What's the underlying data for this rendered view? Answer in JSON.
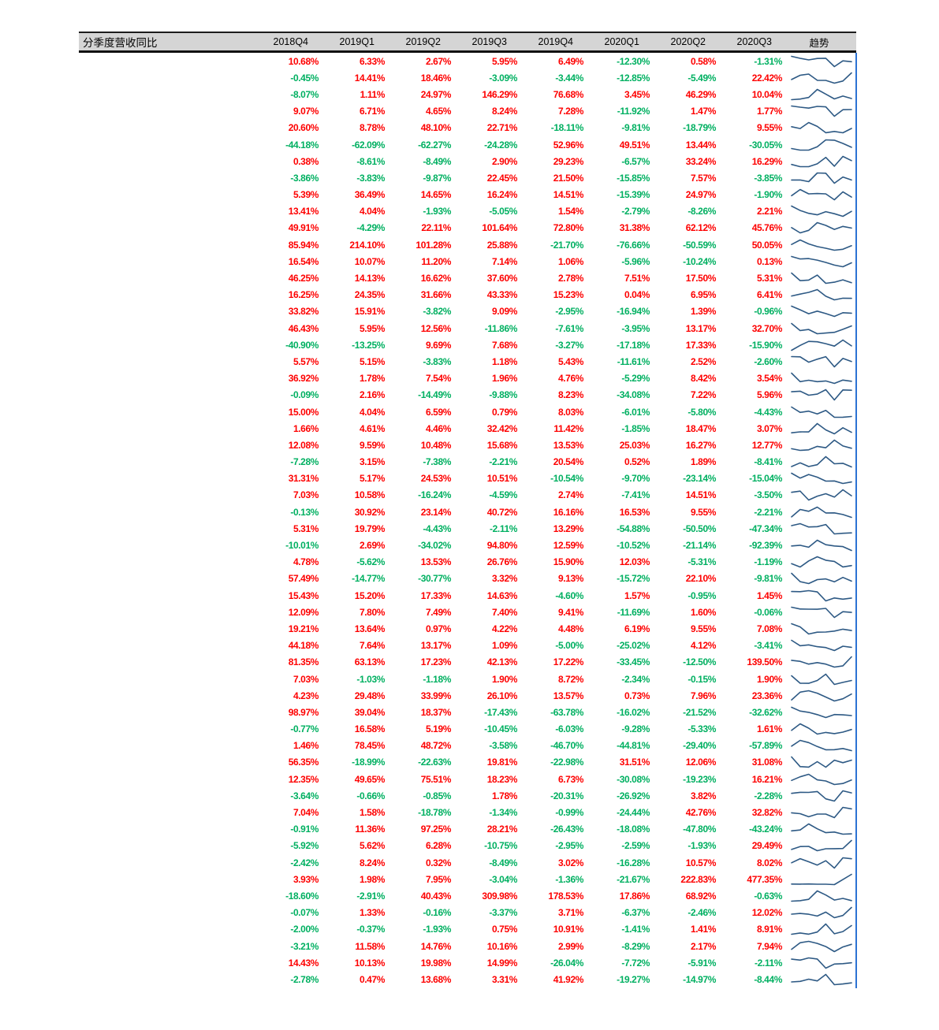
{
  "chart_data": {
    "type": "table",
    "title": "分季度营收同比",
    "columns": [
      "2018Q4",
      "2019Q1",
      "2019Q2",
      "2019Q3",
      "2019Q4",
      "2020Q1",
      "2020Q2",
      "2020Q3"
    ],
    "trend_label": "趋势",
    "value_unit": "%",
    "value_format": "two decimals with % suffix",
    "trend_description": "sparkline line chart of each row's 8 quarterly values",
    "rows": [
      [
        10.68,
        6.33,
        2.67,
        5.95,
        6.49,
        -12.3,
        0.58,
        -1.31
      ],
      [
        -0.45,
        14.41,
        18.46,
        -3.09,
        -3.44,
        -12.85,
        -5.49,
        22.42
      ],
      [
        -8.07,
        1.11,
        24.97,
        146.29,
        76.68,
        3.45,
        46.29,
        10.04
      ],
      [
        9.07,
        6.71,
        4.65,
        8.24,
        7.28,
        -11.92,
        1.47,
        1.77
      ],
      [
        20.6,
        8.78,
        48.1,
        22.71,
        -18.11,
        -9.81,
        -18.79,
        9.55
      ],
      [
        -44.18,
        -62.09,
        -62.27,
        -24.28,
        52.96,
        49.51,
        13.44,
        -30.05
      ],
      [
        0.38,
        -8.61,
        -8.49,
        2.9,
        29.23,
        -6.57,
        33.24,
        16.29
      ],
      [
        -3.86,
        -3.83,
        -9.87,
        22.45,
        21.5,
        -15.85,
        7.57,
        -3.85
      ],
      [
        5.39,
        36.49,
        14.65,
        16.24,
        14.51,
        -15.39,
        24.97,
        -1.9
      ],
      [
        13.41,
        4.04,
        -1.93,
        -5.05,
        1.54,
        -2.79,
        -8.26,
        2.21
      ],
      [
        49.91,
        -4.29,
        22.11,
        101.64,
        72.8,
        31.38,
        62.12,
        45.76
      ],
      [
        85.94,
        214.1,
        101.28,
        25.88,
        -21.7,
        -76.66,
        -50.59,
        50.05
      ],
      [
        16.54,
        10.07,
        11.2,
        7.14,
        1.06,
        -5.96,
        -10.24,
        0.13
      ],
      [
        46.25,
        14.13,
        16.62,
        37.6,
        2.78,
        7.51,
        17.5,
        5.31
      ],
      [
        16.25,
        24.35,
        31.66,
        43.33,
        15.23,
        0.04,
        6.95,
        6.41
      ],
      [
        33.82,
        15.91,
        -3.82,
        9.09,
        -2.95,
        -16.94,
        1.39,
        -0.96
      ],
      [
        46.43,
        5.95,
        12.56,
        -11.86,
        -7.61,
        -3.95,
        13.17,
        32.7
      ],
      [
        -40.9,
        -13.25,
        9.69,
        7.68,
        -3.27,
        -17.18,
        17.33,
        -15.9
      ],
      [
        5.57,
        5.15,
        -3.83,
        1.18,
        5.43,
        -11.61,
        2.52,
        -2.6
      ],
      [
        36.92,
        1.78,
        7.54,
        1.96,
        4.76,
        -5.29,
        8.42,
        3.54
      ],
      [
        -0.09,
        2.16,
        -14.49,
        -9.88,
        8.23,
        -34.08,
        7.22,
        5.96
      ],
      [
        15.0,
        4.04,
        6.59,
        0.79,
        8.03,
        -6.01,
        -5.8,
        -4.43
      ],
      [
        1.66,
        4.61,
        4.46,
        32.42,
        11.42,
        -1.85,
        18.47,
        3.07
      ],
      [
        12.08,
        9.59,
        10.48,
        15.68,
        13.53,
        25.03,
        16.27,
        12.77
      ],
      [
        -7.28,
        3.15,
        -7.38,
        -2.21,
        20.54,
        0.52,
        1.89,
        -8.41
      ],
      [
        31.31,
        5.17,
        24.53,
        10.51,
        -10.54,
        -9.7,
        -23.14,
        -15.04
      ],
      [
        7.03,
        10.58,
        -16.24,
        -4.59,
        2.74,
        -7.41,
        14.51,
        -3.5
      ],
      [
        -0.13,
        30.92,
        23.14,
        40.72,
        16.16,
        16.53,
        9.55,
        -2.21
      ],
      [
        5.31,
        19.79,
        -4.43,
        -2.11,
        13.29,
        -54.88,
        -50.5,
        -47.34
      ],
      [
        -10.01,
        2.69,
        -34.02,
        94.8,
        12.59,
        -10.52,
        -21.14,
        -92.39
      ],
      [
        4.78,
        -5.62,
        13.53,
        26.76,
        15.9,
        12.03,
        -5.31,
        -1.19
      ],
      [
        57.49,
        -14.77,
        -30.77,
        3.32,
        9.13,
        -15.72,
        22.1,
        -9.81
      ],
      [
        15.43,
        15.2,
        17.33,
        14.63,
        -4.6,
        1.57,
        -0.95,
        1.45
      ],
      [
        12.09,
        7.8,
        7.49,
        7.4,
        9.41,
        -11.69,
        1.6,
        -0.06
      ],
      [
        19.21,
        13.64,
        0.97,
        4.22,
        4.48,
        6.19,
        9.55,
        7.08
      ],
      [
        44.18,
        7.64,
        13.17,
        1.09,
        -5.0,
        -25.02,
        4.12,
        -3.41
      ],
      [
        81.35,
        63.13,
        17.23,
        42.13,
        17.22,
        -33.45,
        -12.5,
        139.5
      ],
      [
        7.03,
        -1.03,
        -1.18,
        1.9,
        8.72,
        -2.34,
        -0.15,
        1.9
      ],
      [
        4.23,
        29.48,
        33.99,
        26.1,
        13.57,
        0.73,
        7.96,
        23.36
      ],
      [
        98.97,
        39.04,
        18.37,
        -17.43,
        -63.78,
        -16.02,
        -21.52,
        -32.62
      ],
      [
        -0.77,
        16.58,
        5.19,
        -10.45,
        -6.03,
        -9.28,
        -5.33,
        1.61
      ],
      [
        1.46,
        78.45,
        48.72,
        -3.58,
        -46.7,
        -44.81,
        -29.4,
        -57.89
      ],
      [
        56.35,
        -18.99,
        -22.63,
        19.81,
        -22.98,
        31.51,
        12.06,
        31.08
      ],
      [
        12.35,
        49.65,
        75.51,
        18.23,
        6.73,
        -30.08,
        -19.23,
        16.21
      ],
      [
        -3.64,
        -0.66,
        -0.85,
        1.78,
        -20.31,
        -26.92,
        3.82,
        -2.28
      ],
      [
        7.04,
        1.58,
        -18.78,
        -1.34,
        -0.99,
        -24.44,
        42.76,
        32.82
      ],
      [
        -0.91,
        11.36,
        97.25,
        28.21,
        -26.43,
        -18.08,
        -47.8,
        -43.24
      ],
      [
        -5.92,
        5.62,
        6.28,
        -10.75,
        -2.95,
        -2.59,
        -1.93,
        29.49
      ],
      [
        -2.42,
        8.24,
        0.32,
        -8.49,
        3.02,
        -16.28,
        10.57,
        8.02
      ],
      [
        3.93,
        1.98,
        7.95,
        -3.04,
        -1.36,
        -21.67,
        222.83,
        477.35
      ],
      [
        -18.6,
        -2.91,
        40.43,
        309.98,
        178.53,
        17.86,
        68.92,
        -0.63
      ],
      [
        -0.07,
        1.33,
        -0.16,
        -3.37,
        3.71,
        -6.37,
        -2.46,
        12.02
      ],
      [
        -2.0,
        -0.37,
        -1.93,
        0.75,
        10.91,
        -1.41,
        1.41,
        8.91
      ],
      [
        -3.21,
        11.58,
        14.76,
        10.16,
        2.99,
        -8.29,
        2.17,
        7.94
      ],
      [
        14.43,
        10.13,
        19.98,
        14.99,
        -26.04,
        -7.72,
        -5.91,
        -2.11
      ],
      [
        -2.78,
        0.47,
        13.68,
        3.31,
        41.92,
        -19.27,
        -14.97,
        -8.44
      ]
    ]
  },
  "colors": {
    "background": "#ffffff",
    "header_bg": "#d5d5d5",
    "header_text": "#000000",
    "positive": "#fe0000",
    "negative": "#00b061",
    "sparkline": "#2d5984",
    "accent_line": "#2c72d3"
  }
}
